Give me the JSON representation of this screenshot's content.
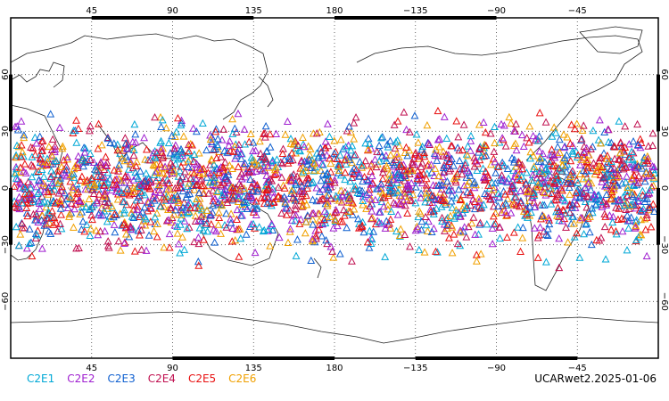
{
  "map": {
    "top_lon_labels": [
      "45",
      "90",
      "135",
      "180",
      "−135",
      "−90",
      "−45"
    ],
    "bottom_lon_labels": [
      "45",
      "90",
      "135",
      "180",
      "−135",
      "−90",
      "−45"
    ],
    "left_lat_labels": [
      "60",
      "30",
      "0",
      "−30",
      "−60"
    ],
    "right_lat_labels": [
      "60",
      "30",
      "0",
      "−30",
      "−60"
    ],
    "lat_extent": [
      -90,
      90
    ],
    "lon_center": 180,
    "grid": "dotted"
  },
  "legend": {
    "items": [
      {
        "label": "C2E1",
        "color": "#00a8d6"
      },
      {
        "label": "C2E2",
        "color": "#a020d0"
      },
      {
        "label": "C2E3",
        "color": "#1060d0"
      },
      {
        "label": "C2E4",
        "color": "#c01050"
      },
      {
        "label": "C2E5",
        "color": "#e81010"
      },
      {
        "label": "C2E6",
        "color": "#f0a000"
      }
    ]
  },
  "caption": "UCARwet2.2025-01-06",
  "chart_data": {
    "type": "scatter",
    "marker": "triangle-open",
    "lat_band": [
      -45,
      47
    ],
    "series": [
      {
        "name": "C2E1",
        "color": "#00a8d6"
      },
      {
        "name": "C2E2",
        "color": "#a020d0"
      },
      {
        "name": "C2E3",
        "color": "#1060d0"
      },
      {
        "name": "C2E4",
        "color": "#c01050"
      },
      {
        "name": "C2E5",
        "color": "#e81010"
      },
      {
        "name": "C2E6",
        "color": "#f0a000"
      }
    ]
  }
}
